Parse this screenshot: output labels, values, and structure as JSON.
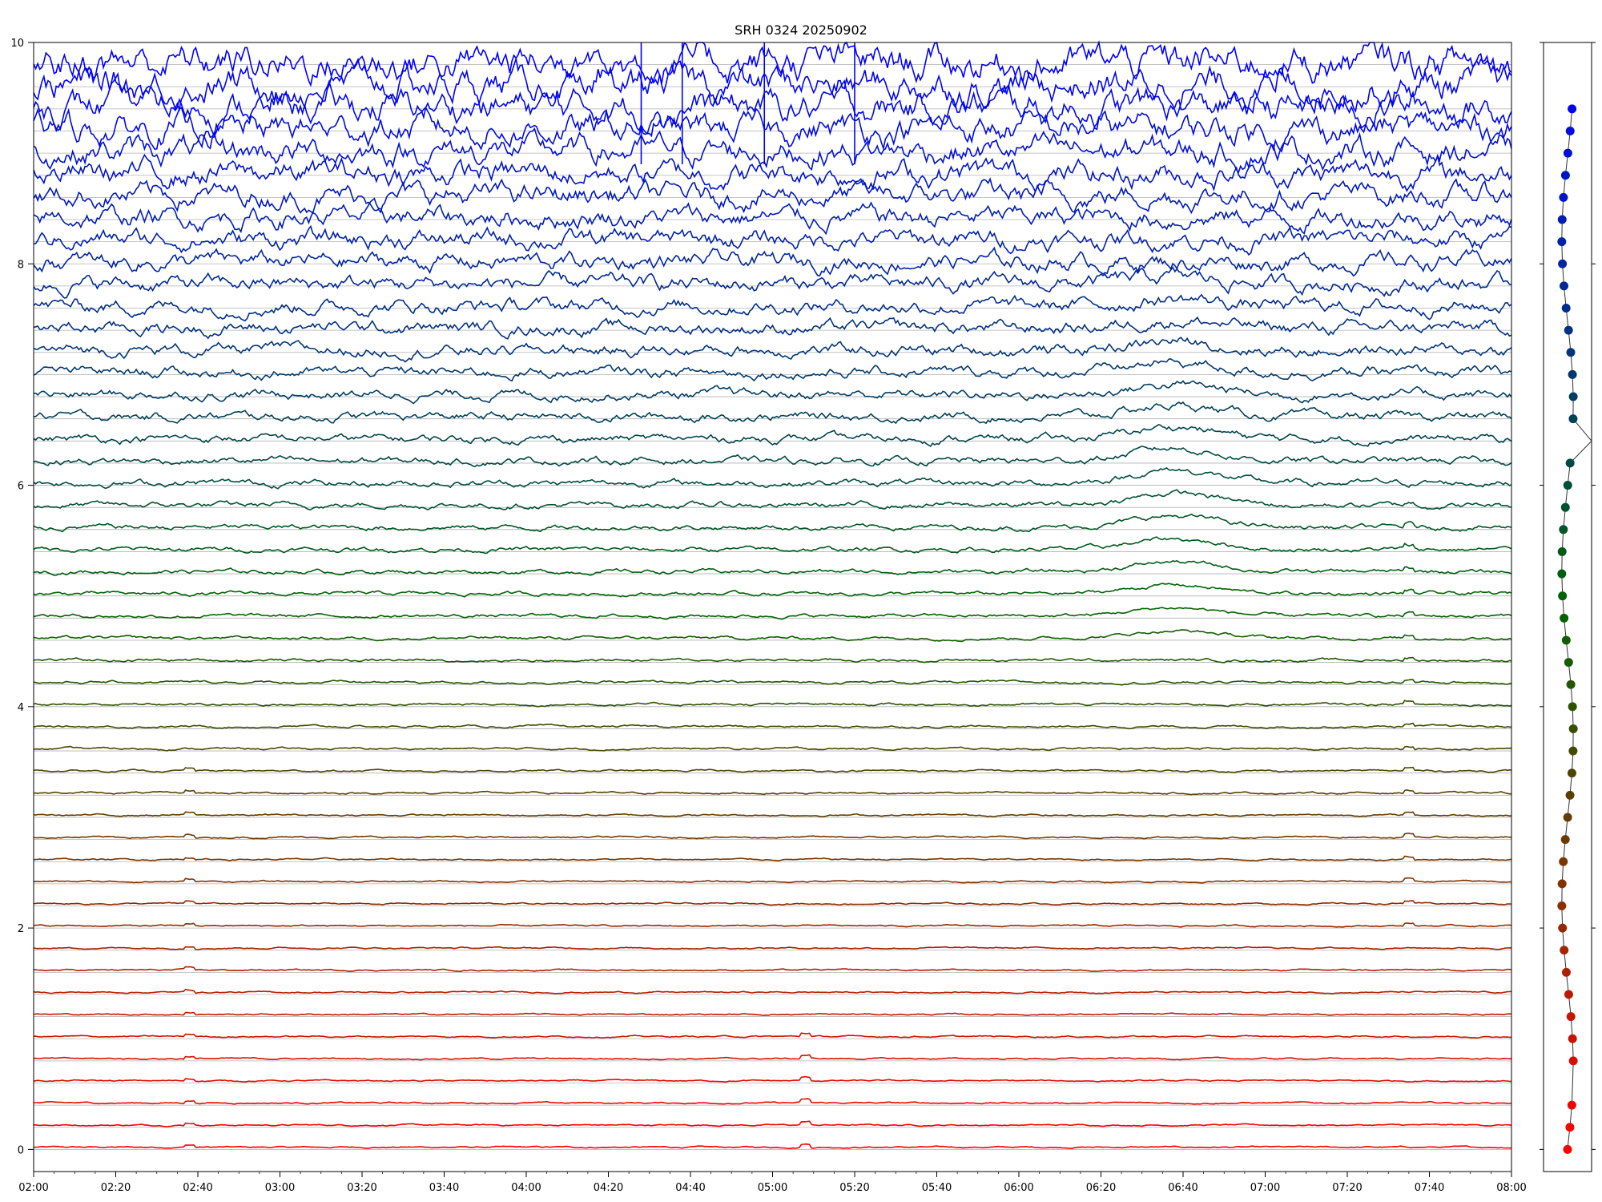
{
  "chart_data": [
    {
      "type": "line",
      "title": "SRH 0324 20250902",
      "xlabel": "",
      "ylabel": "",
      "x_range": [
        "02:00",
        "08:00"
      ],
      "x_tick_labels": [
        "02:00",
        "02:20",
        "02:40",
        "03:00",
        "03:20",
        "03:40",
        "04:00",
        "04:20",
        "04:40",
        "05:00",
        "05:20",
        "05:40",
        "06:00",
        "06:20",
        "06:40",
        "07:00",
        "07:20",
        "07:40",
        "08:00"
      ],
      "ylim": [
        -0.2,
        10
      ],
      "y_tick_labels": [
        "0",
        "2",
        "4",
        "6",
        "8",
        "10"
      ],
      "grid": "horizontal gridline at each trace baseline",
      "trace_count": 50,
      "trace_spacing": 0.2,
      "trace_baselines": [
        0,
        9.8
      ],
      "color_scale": [
        "#ff0000",
        "#006400",
        "#0000ff"
      ],
      "notable_events": [
        {
          "time": "02:38",
          "description": "small spikes on lower red traces"
        },
        {
          "time": "05:08",
          "description": "spike on lowest traces"
        },
        {
          "time": "06:38",
          "description": "enhancement on middle traces"
        },
        {
          "time": "07:35",
          "description": "small spikes on mid traces"
        },
        {
          "time": "04:30",
          "description": "large spikes on top traces"
        }
      ]
    },
    {
      "type": "scatter",
      "x_range": [
        0,
        1
      ],
      "ylim": [
        -0.2,
        10
      ],
      "points": [
        {
          "y": 0.0
        },
        {
          "y": 0.2
        },
        {
          "y": 0.4
        },
        {
          "y": 0.8
        },
        {
          "y": 1.0
        },
        {
          "y": 1.2
        },
        {
          "y": 1.4
        },
        {
          "y": 1.6
        },
        {
          "y": 1.8
        },
        {
          "y": 2.0
        },
        {
          "y": 2.2
        },
        {
          "y": 2.4
        },
        {
          "y": 2.6
        },
        {
          "y": 2.8
        },
        {
          "y": 3.0
        },
        {
          "y": 3.2
        },
        {
          "y": 3.4
        },
        {
          "y": 3.6
        },
        {
          "y": 3.8
        },
        {
          "y": 4.0
        },
        {
          "y": 4.2
        },
        {
          "y": 4.4
        },
        {
          "y": 4.6
        },
        {
          "y": 4.8
        },
        {
          "y": 5.0
        },
        {
          "y": 5.2
        },
        {
          "y": 5.4
        },
        {
          "y": 5.6
        },
        {
          "y": 5.8
        },
        {
          "y": 6.0
        },
        {
          "y": 6.2
        },
        {
          "y": 6.6
        },
        {
          "y": 6.8
        },
        {
          "y": 7.0
        },
        {
          "y": 7.2
        },
        {
          "y": 7.4
        },
        {
          "y": 7.6
        },
        {
          "y": 7.8
        },
        {
          "y": 8.0
        },
        {
          "y": 8.2
        },
        {
          "y": 8.4
        },
        {
          "y": 8.6
        },
        {
          "y": 8.8
        },
        {
          "y": 9.0
        },
        {
          "y": 9.2
        },
        {
          "y": 9.4
        }
      ],
      "jumps": [
        0.4,
        6.4
      ]
    }
  ]
}
